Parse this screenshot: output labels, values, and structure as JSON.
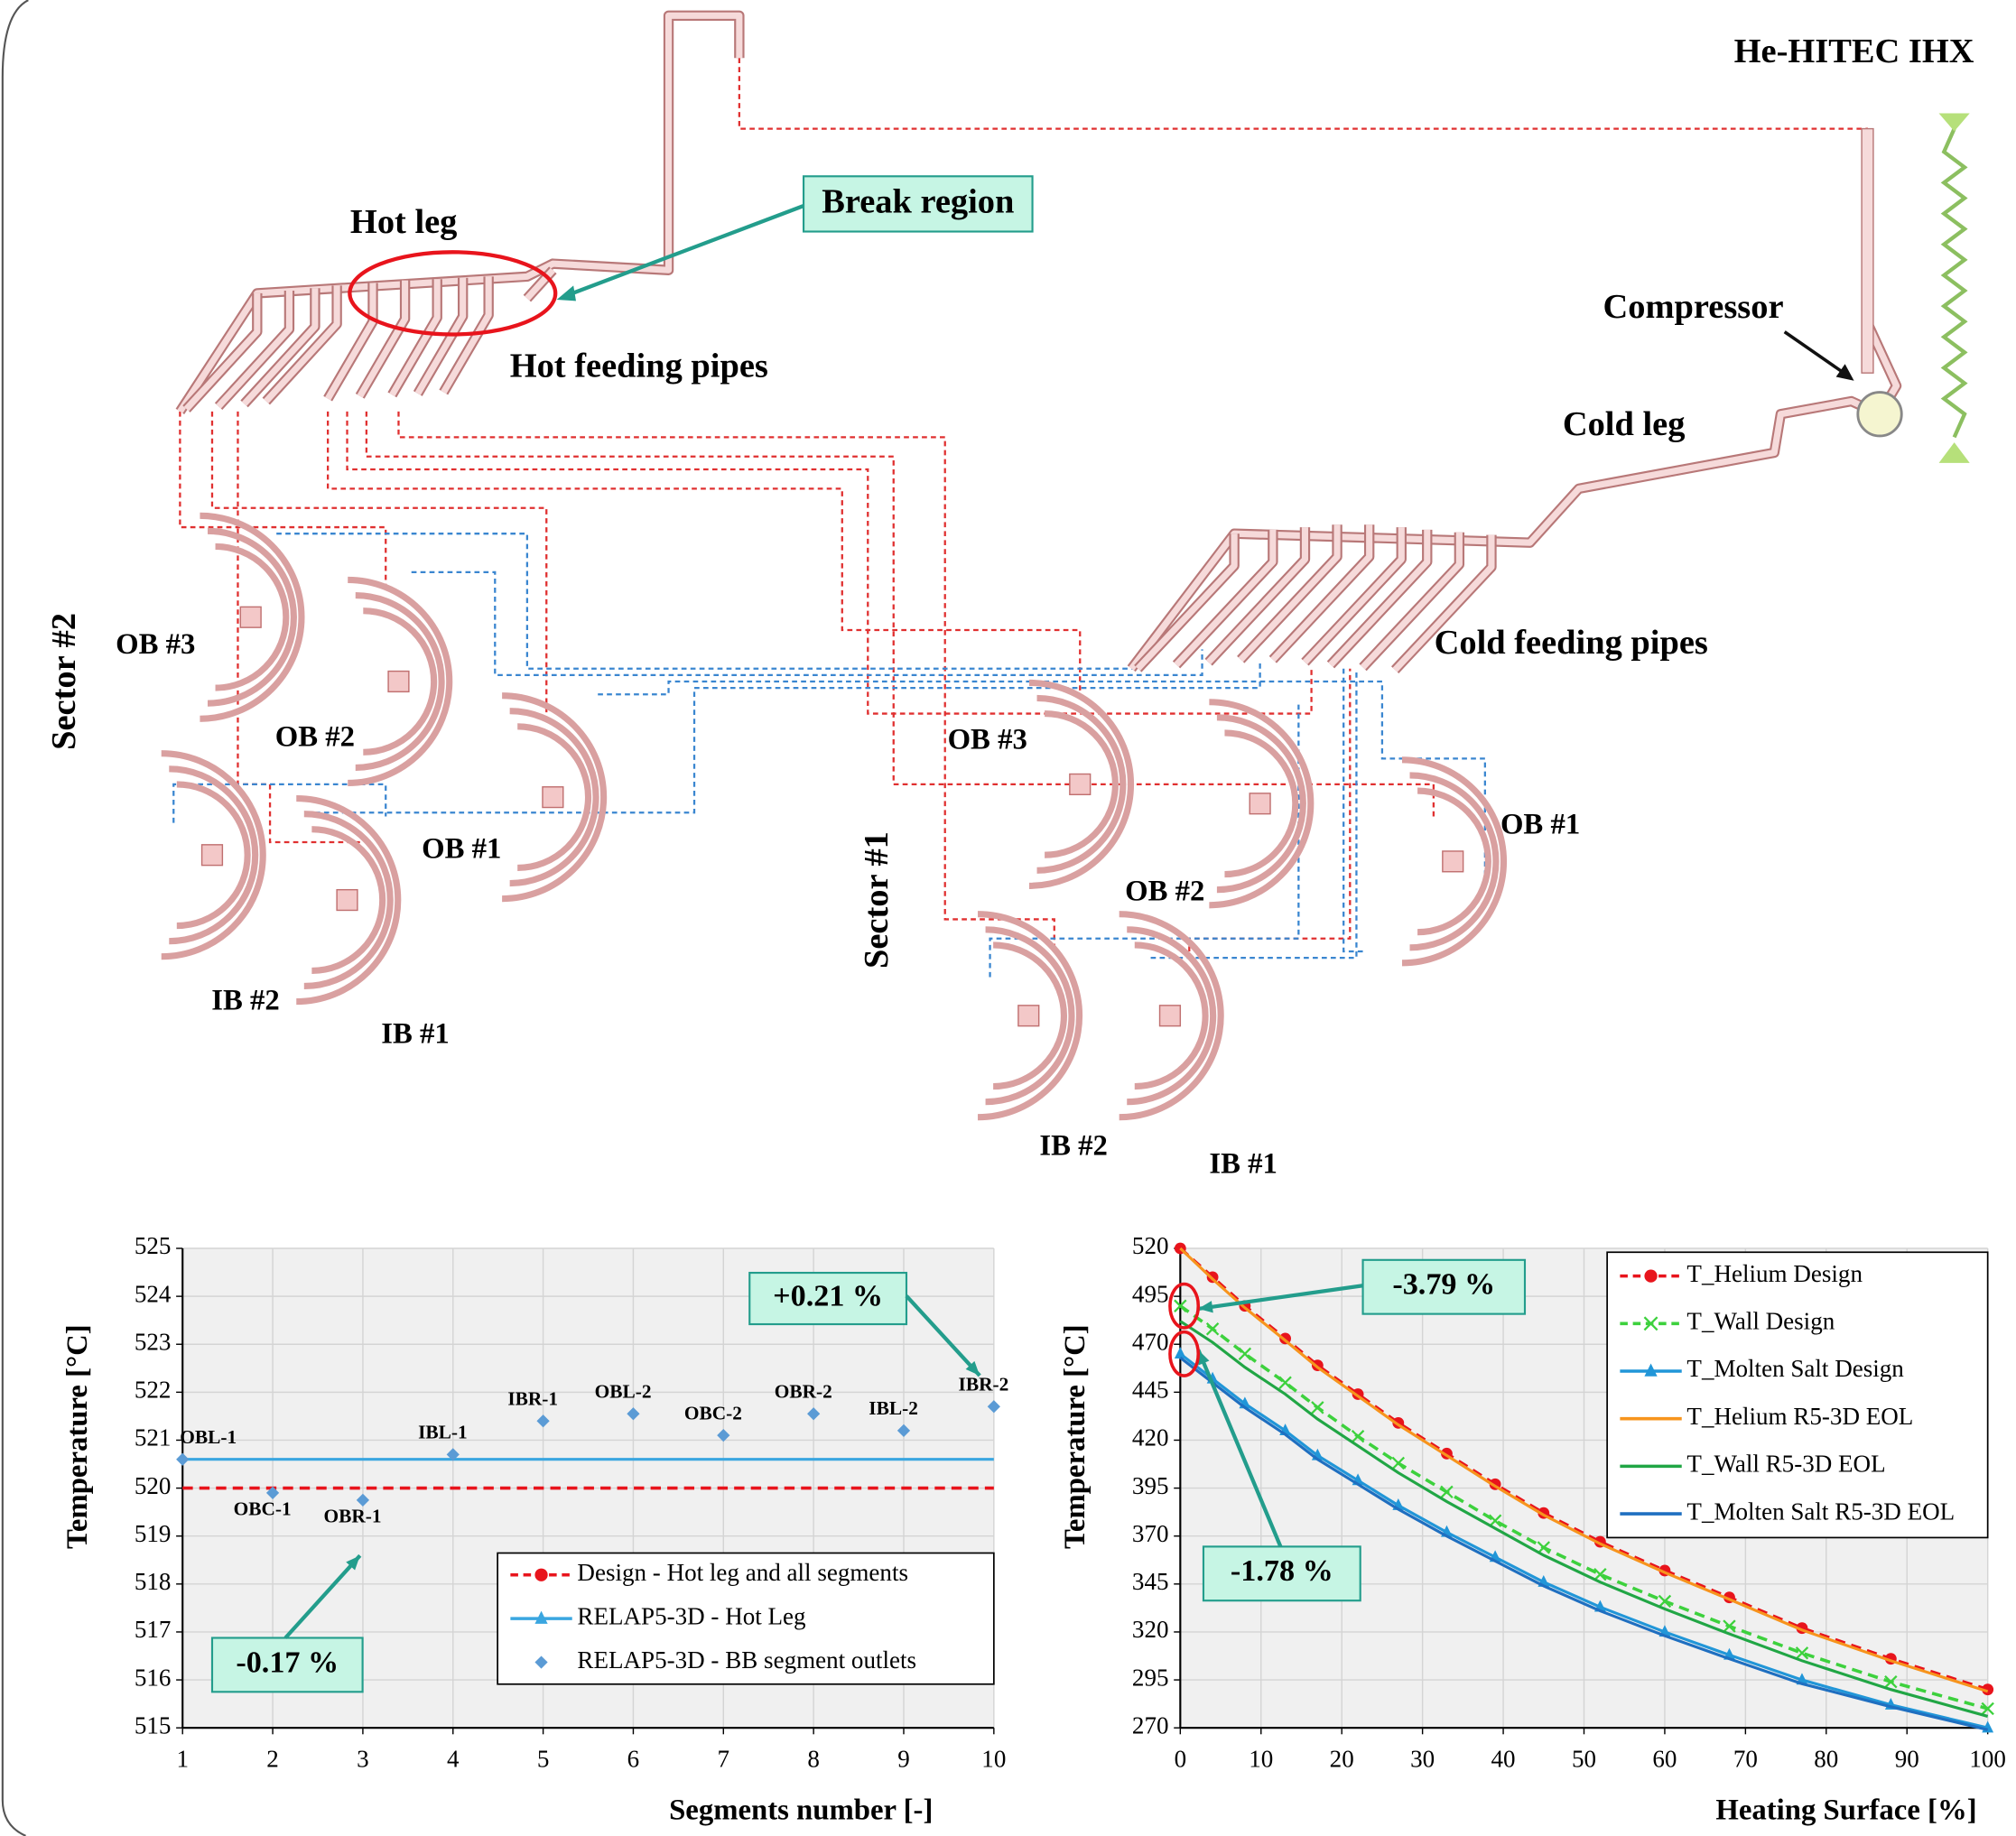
{
  "diagram": {
    "labels": {
      "ihx": "He-HITEC IHX",
      "break_region": "Break region",
      "hot_leg": "Hot leg",
      "hot_feeding_pipes": "Hot feeding pipes",
      "compressor": "Compressor",
      "cold_leg": "Cold leg",
      "cold_feeding_pipes": "Cold feeding pipes",
      "sector2": "Sector #2",
      "sector1": "Sector #1",
      "s2_ob3": "OB #3",
      "s2_ob2": "OB #2",
      "s2_ob1": "OB #1",
      "s2_ib2": "IB #2",
      "s2_ib1": "IB #1",
      "s1_ob3": "OB #3",
      "s1_ob2": "OB #2",
      "s1_ob1": "OB #1",
      "s1_ib2": "IB #2",
      "s1_ib1": "IB #1"
    }
  },
  "chart_data": [
    {
      "type": "line",
      "xlabel": "Segments number [-]",
      "ylabel": "Temperature [°C]",
      "xlim": [
        1,
        10
      ],
      "xticks": [
        1,
        2,
        3,
        4,
        5,
        6,
        7,
        8,
        9,
        10
      ],
      "ylim": [
        515,
        525
      ],
      "yticks": [
        515,
        516,
        517,
        518,
        519,
        520,
        521,
        522,
        523,
        524,
        525
      ],
      "grid": true,
      "legend": "lower right",
      "line_markers": false,
      "annotations": [
        "+0.21 %",
        "-0.17 %"
      ],
      "series": [
        {
          "name": "Design - Hot leg and all segments",
          "color": "#e8141c",
          "dash": true,
          "marker": "circle",
          "x": [
            1,
            10
          ],
          "values": [
            520,
            520
          ]
        },
        {
          "name": "RELAP5-3D - Hot Leg",
          "color": "#3aa6e0",
          "dash": false,
          "marker": "triangle",
          "x": [
            1,
            10
          ],
          "values": [
            520.6,
            520.6
          ]
        },
        {
          "name": "RELAP5-3D - BB segment outlets",
          "color": "#5b9bd5",
          "scatter": true,
          "marker": "diamond",
          "x": [
            1,
            2,
            3,
            4,
            5,
            6,
            7,
            8,
            9,
            10
          ],
          "values": [
            520.6,
            519.9,
            519.75,
            520.7,
            521.4,
            521.55,
            521.1,
            521.55,
            521.2,
            521.7
          ],
          "point_labels": [
            "OBL-1",
            "OBC-1",
            "OBR-1",
            "IBL-1",
            "IBR-1",
            "OBL-2",
            "OBC-2",
            "OBR-2",
            "IBL-2",
            "IBR-2"
          ]
        }
      ]
    },
    {
      "type": "line",
      "xlabel": "Heating Surface [%]",
      "ylabel": "Temperature [°C]",
      "xlim": [
        0,
        100
      ],
      "xticks": [
        0,
        10,
        20,
        30,
        40,
        50,
        60,
        70,
        80,
        90,
        100
      ],
      "ylim": [
        270,
        520
      ],
      "yticks": [
        270,
        295,
        320,
        345,
        370,
        395,
        420,
        445,
        470,
        495,
        520
      ],
      "grid": true,
      "legend": "upper right",
      "line_markers": true,
      "annotations": [
        "-3.79 %",
        "-1.78 %"
      ],
      "series": [
        {
          "name": "T_Helium Design",
          "color": "#e8141c",
          "dash": true,
          "marker": "circle",
          "x": [
            0,
            4,
            8,
            13,
            17,
            22,
            27,
            33,
            39,
            45,
            52,
            60,
            68,
            77,
            88,
            100
          ],
          "values": [
            520,
            505,
            490,
            473,
            459,
            444,
            429,
            413,
            397,
            382,
            367,
            352,
            338,
            322,
            306,
            290
          ]
        },
        {
          "name": "T_Wall Design",
          "color": "#3dd13d",
          "dash": true,
          "marker": "x",
          "x": [
            0,
            4,
            8,
            13,
            17,
            22,
            27,
            33,
            39,
            45,
            52,
            60,
            68,
            77,
            88,
            100
          ],
          "values": [
            490,
            478,
            465,
            450,
            437,
            422,
            408,
            393,
            378,
            364,
            350,
            336,
            323,
            309,
            294,
            280
          ]
        },
        {
          "name": "T_Molten Salt Design",
          "color": "#2196d8",
          "dash": false,
          "marker": "triangle",
          "x": [
            0,
            4,
            8,
            13,
            17,
            22,
            27,
            33,
            39,
            45,
            52,
            60,
            68,
            77,
            88,
            100
          ],
          "values": [
            465,
            452,
            439,
            425,
            412,
            399,
            386,
            372,
            359,
            346,
            333,
            320,
            308,
            295,
            282,
            270
          ]
        },
        {
          "name": "T_Helium R5-3D EOL",
          "color": "#f7941d",
          "dash": false,
          "x": [
            0,
            4,
            8,
            13,
            17,
            22,
            27,
            33,
            39,
            45,
            52,
            60,
            68,
            77,
            88,
            100
          ],
          "values": [
            520,
            504,
            489,
            472,
            458,
            443,
            428,
            412,
            396,
            381,
            366,
            351,
            337,
            321,
            305,
            289
          ]
        },
        {
          "name": "T_Wall R5-3D EOL",
          "color": "#21a645",
          "dash": false,
          "x": [
            0,
            4,
            8,
            13,
            17,
            22,
            27,
            33,
            39,
            45,
            52,
            60,
            68,
            77,
            88,
            100
          ],
          "values": [
            482,
            471,
            458,
            444,
            431,
            417,
            403,
            388,
            374,
            360,
            346,
            332,
            319,
            305,
            290,
            276
          ]
        },
        {
          "name": "T_Molten Salt R5-3D EOL",
          "color": "#1f6fc0",
          "dash": false,
          "x": [
            0,
            4,
            8,
            13,
            17,
            22,
            27,
            33,
            39,
            45,
            52,
            60,
            68,
            77,
            88,
            100
          ],
          "values": [
            463,
            450,
            437,
            423,
            410,
            397,
            384,
            370,
            357,
            344,
            331,
            318,
            306,
            293,
            281,
            269
          ]
        }
      ]
    }
  ]
}
